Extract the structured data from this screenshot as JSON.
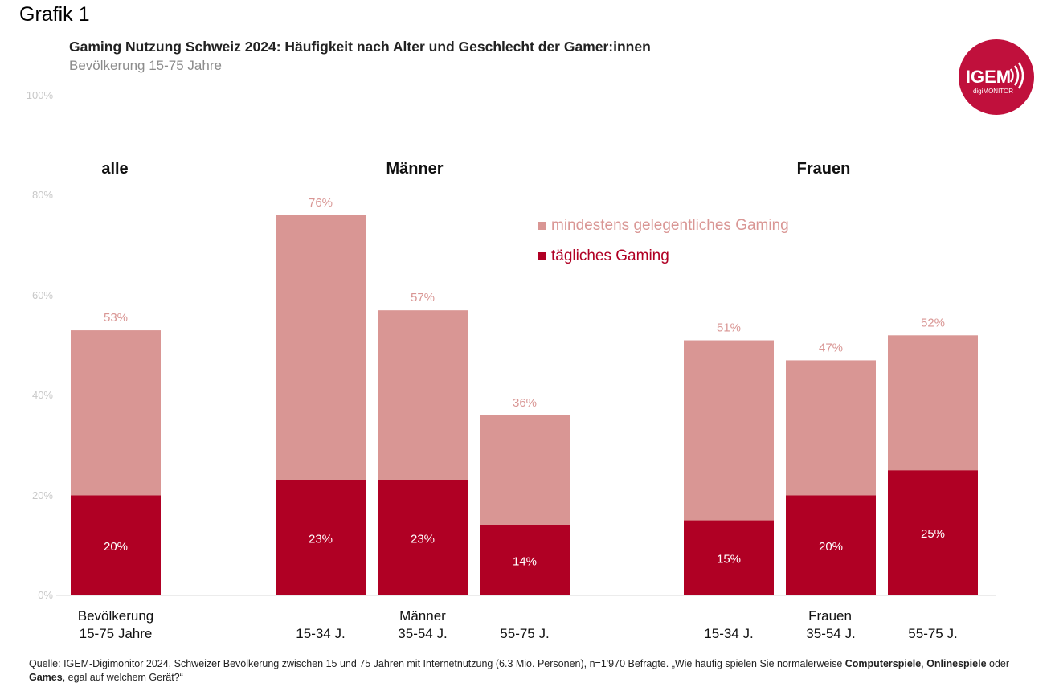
{
  "header": {
    "grafik": "Grafik 1",
    "title": "Gaming Nutzung Schweiz 2024: Häufigkeit nach Alter und Geschlecht der Gamer:innen",
    "subtitle": "Bevölkerung 15-75 Jahre"
  },
  "logo": {
    "text": "IGEM",
    "sub": "digiMONITOR",
    "color": "#c0103c"
  },
  "footer": {
    "part1": "Quelle: IGEM-Digimonitor 2024, Schweizer Bevölkerung zwischen 15 und 75 Jahren mit Internetnutzung (6.3 Mio. Personen), n=1'970 Befragte. „Wie häufig spielen Sie normalerweise ",
    "b1": "Computerspiele",
    "c1": ", ",
    "b2": "Onlinespiele",
    "c2": " oder ",
    "b3": "Games",
    "c3": ", egal auf welchem Gerät?“"
  },
  "chart_data": {
    "type": "bar",
    "stacked": "overlay",
    "ylim": [
      0,
      100
    ],
    "yticks": [
      "0%",
      "20%",
      "40%",
      "60%",
      "80%",
      "100%"
    ],
    "groups": [
      "alle",
      "Männer",
      "Frauen"
    ],
    "group_xlabels": [
      "Männer",
      "Frauen"
    ],
    "categories": [
      "Bevölkerung 15-75 Jahre",
      "15-34 J.",
      "35-54 J.",
      "55-75 J.",
      "15-34 J.",
      "35-54 J.",
      "55-75 J."
    ],
    "series": [
      {
        "name": "mindestens gelegentliches Gaming",
        "color": "#d99694",
        "values": [
          53,
          76,
          57,
          36,
          51,
          47,
          52
        ],
        "labels": [
          "53%",
          "76%",
          "57%",
          "36%",
          "51%",
          "47%",
          "52%"
        ]
      },
      {
        "name": "tägliches Gaming",
        "color": "#b00024",
        "values": [
          20,
          23,
          23,
          14,
          15,
          20,
          25
        ],
        "labels": [
          "20%",
          "23%",
          "23%",
          "14%",
          "15%",
          "20%",
          "25%"
        ]
      }
    ]
  }
}
